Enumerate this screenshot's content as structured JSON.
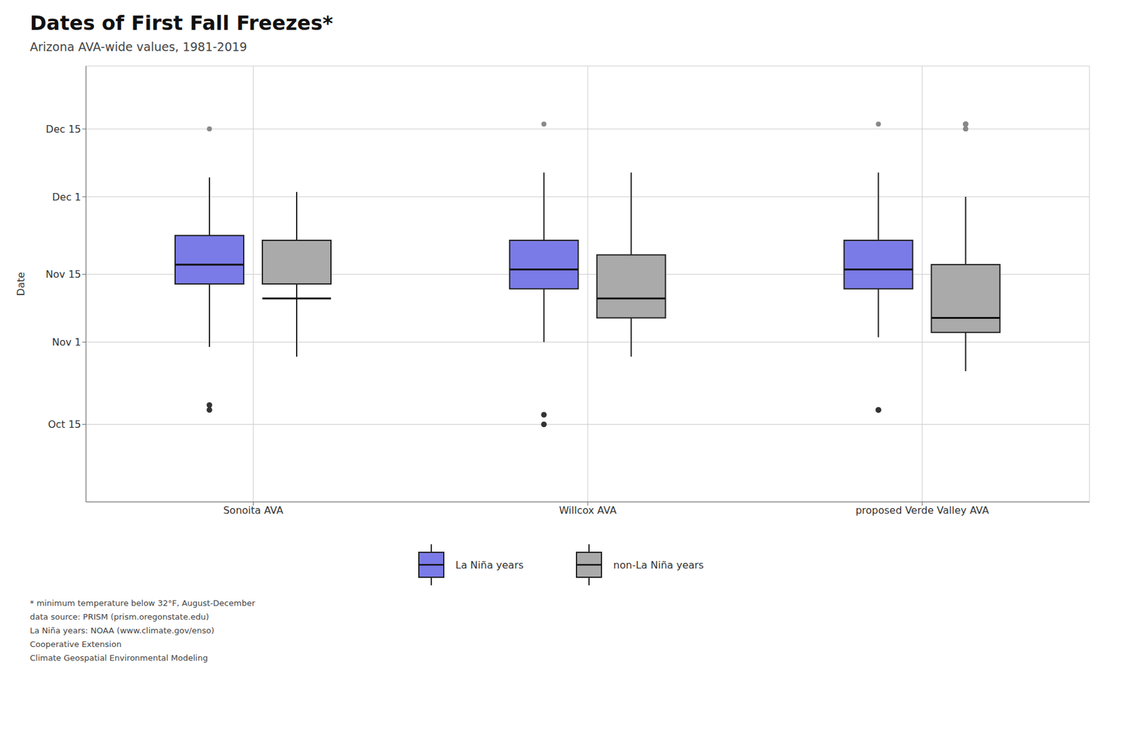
{
  "chart_data": {
    "type": "box",
    "title": "Dates of First Fall Freezes*",
    "subtitle": "Arizona AVA-wide values, 1981-2019",
    "ylabel": "Date",
    "categories": [
      "Sonoita AVA",
      "Willcox AVA",
      "proposed Verde Valley AVA"
    ],
    "series": [
      {
        "name": "La Niña years",
        "color": "#7B7BE8",
        "values": [
          {
            "q1": 317,
            "median": 321,
            "q3": 327,
            "whislo": 304,
            "whishi": 339,
            "fliers_dark": [
              292,
              291
            ],
            "fliers_light": [
              349
            ]
          },
          {
            "q1": 316,
            "median": 320,
            "q3": 326,
            "whislo": 305,
            "whishi": 340,
            "fliers_dark": [
              290,
              288
            ],
            "fliers_light": [
              350
            ]
          },
          {
            "q1": 316,
            "median": 320,
            "q3": 326,
            "whislo": 306,
            "whishi": 340,
            "fliers_dark": [
              291,
              291
            ],
            "fliers_light": [
              350
            ]
          }
        ]
      },
      {
        "name": "non-La Niña years",
        "color": "#AAAAAA",
        "values": [
          {
            "q1": 317,
            "median": 314,
            "q3": 326,
            "whislo": 302,
            "whishi": 336,
            "fliers_dark": [],
            "fliers_light": []
          },
          {
            "q1": 310,
            "median": 314,
            "q3": 323,
            "whislo": 302,
            "whishi": 340,
            "fliers_dark": [],
            "fliers_light": []
          },
          {
            "q1": 307,
            "median": 310,
            "q3": 321,
            "whislo": 299,
            "whishi": 335,
            "fliers_dark": [],
            "fliers_light": [
              349,
              349,
              350,
              350,
              350,
              350,
              350,
              350,
              349
            ]
          }
        ]
      }
    ],
    "ylim": [
      272,
      362
    ],
    "yticks": [
      {
        "value": 288,
        "label": "Oct 15"
      },
      {
        "value": 305,
        "label": "Nov 1"
      },
      {
        "value": 319,
        "label": "Nov 15"
      },
      {
        "value": 335,
        "label": "Dec 1"
      },
      {
        "value": 349,
        "label": "Dec 15"
      }
    ],
    "grid": true,
    "legend": "bottom",
    "annotations": [
      "* minimum temperature below 32°F, August-December",
      "data source: PRISM (prism.oregonstate.edu)",
      "La Niña years: NOAA (www.climate.gov/enso)",
      "Cooperative Extension",
      "Climate Geospatial Environmental Modeling"
    ]
  }
}
